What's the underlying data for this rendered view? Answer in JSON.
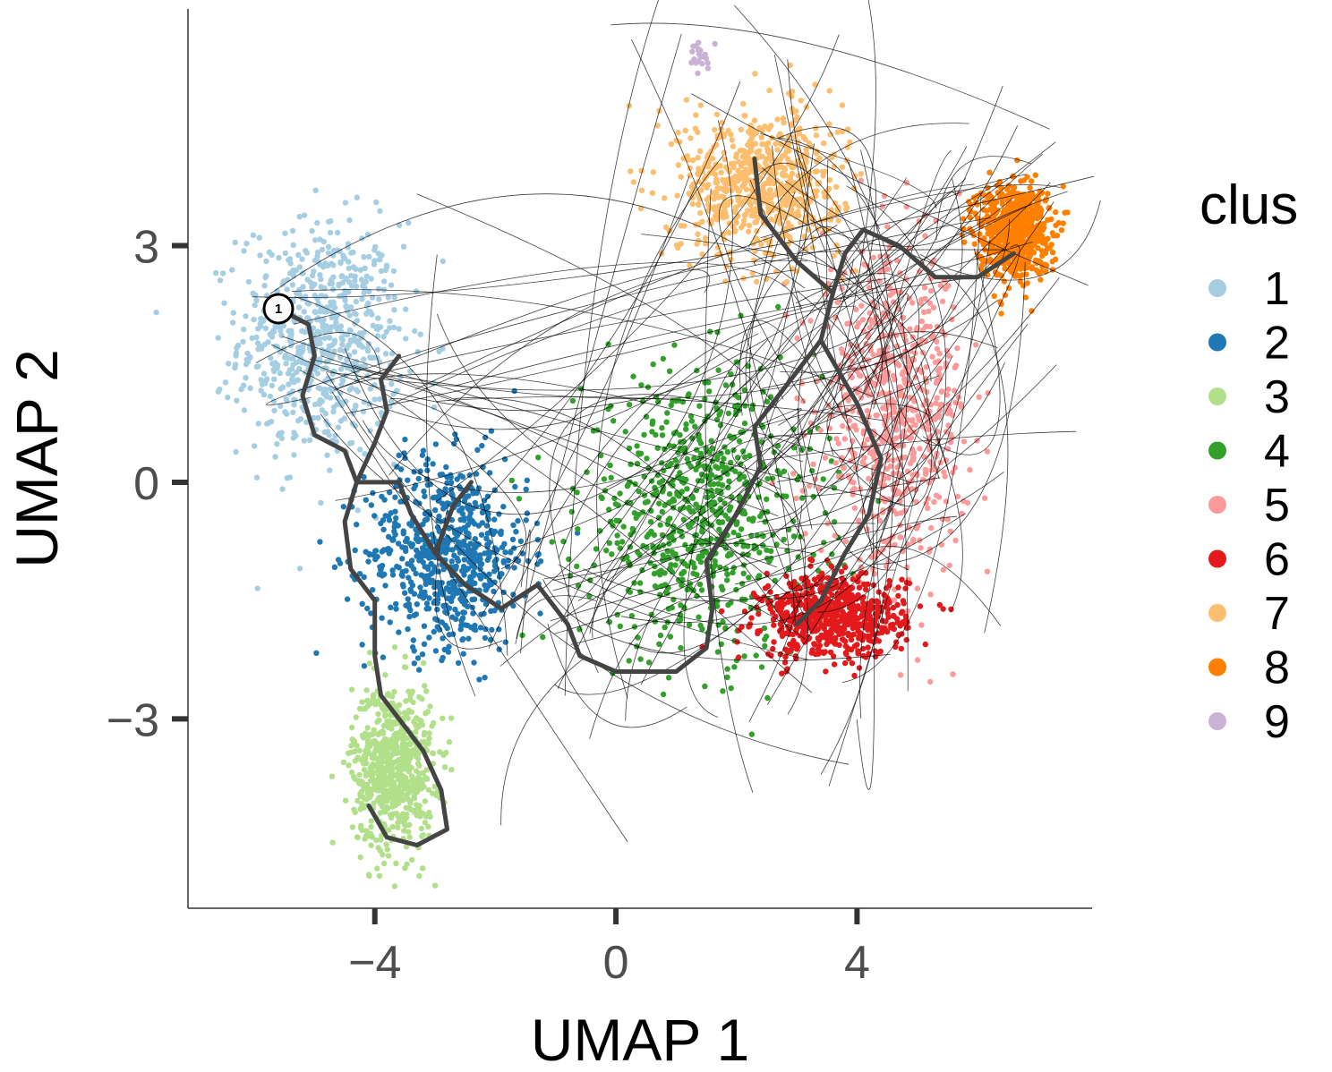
{
  "chart_data": {
    "type": "scatter",
    "xlabel": "UMAP 1",
    "ylabel": "UMAP 2",
    "xlim": [
      -7.1,
      7.9
    ],
    "ylim": [
      -5.4,
      6.0
    ],
    "xticks": [
      -4,
      0,
      4
    ],
    "xtick_labels": [
      "−4",
      "0",
      "4"
    ],
    "yticks": [
      -3,
      0,
      3
    ],
    "ytick_labels": [
      "−3",
      "0",
      "3"
    ],
    "grid": false,
    "legend": {
      "title": "clus",
      "placement": "right",
      "entries": [
        "1",
        "2",
        "3",
        "4",
        "5",
        "6",
        "7",
        "8",
        "9"
      ]
    },
    "clusters": [
      {
        "name": "1",
        "color": "#a6cee3",
        "cx": -4.9,
        "cy": 1.8,
        "sx": 0.9,
        "sy": 1.0
      },
      {
        "name": "2",
        "color": "#1f78b4",
        "cx": -2.8,
        "cy": -0.9,
        "sx": 0.9,
        "sy": 0.8
      },
      {
        "name": "3",
        "color": "#b2df8a",
        "cx": -3.7,
        "cy": -3.6,
        "sx": 0.45,
        "sy": 0.7
      },
      {
        "name": "4",
        "color": "#33a02c",
        "cx": 1.4,
        "cy": -0.4,
        "sx": 1.3,
        "sy": 1.2
      },
      {
        "name": "5",
        "color": "#fb9a99",
        "cx": 4.6,
        "cy": 0.9,
        "sx": 0.8,
        "sy": 1.3
      },
      {
        "name": "6",
        "color": "#e31a1c",
        "cx": 3.6,
        "cy": -1.7,
        "sx": 0.8,
        "sy": 0.35
      },
      {
        "name": "7",
        "color": "#fdbf6f",
        "cx": 2.4,
        "cy": 3.8,
        "sx": 0.9,
        "sy": 0.6
      },
      {
        "name": "8",
        "color": "#ff7f00",
        "cx": 6.6,
        "cy": 3.2,
        "sx": 0.4,
        "sy": 0.4
      },
      {
        "name": "9",
        "color": "#cab2d6",
        "cx": 1.4,
        "cy": 5.4,
        "sx": 0.15,
        "sy": 0.12
      }
    ],
    "trajectory": {
      "color": "#444444",
      "start_label": "1",
      "start": [
        -5.6,
        2.2
      ],
      "path": [
        [
          -5.6,
          2.2
        ],
        [
          -5.1,
          2.0
        ],
        [
          -5.0,
          1.6
        ],
        [
          -5.2,
          1.1
        ],
        [
          -5.0,
          0.6
        ],
        [
          -4.5,
          0.4
        ],
        [
          -4.3,
          0.0
        ],
        [
          -4.5,
          -0.5
        ],
        [
          -4.4,
          -1.1
        ],
        [
          -4.0,
          -1.5
        ],
        [
          -4.0,
          -2.2
        ],
        [
          -3.9,
          -2.7
        ],
        [
          -3.6,
          -3.0
        ],
        [
          -3.2,
          -3.4
        ],
        [
          -2.9,
          -3.9
        ],
        [
          -2.8,
          -4.4
        ],
        [
          -3.3,
          -4.6
        ],
        [
          -3.8,
          -4.5
        ],
        [
          -4.1,
          -4.1
        ]
      ],
      "branches": [
        [
          [
            -4.3,
            0.0
          ],
          [
            -4.0,
            0.5
          ],
          [
            -3.8,
            0.9
          ],
          [
            -3.9,
            1.3
          ],
          [
            -3.6,
            1.6
          ]
        ],
        [
          [
            -4.3,
            0.0
          ],
          [
            -3.6,
            0.0
          ],
          [
            -3.4,
            -0.4
          ],
          [
            -3.0,
            -0.9
          ],
          [
            -2.5,
            -1.3
          ],
          [
            -1.9,
            -1.6
          ],
          [
            -1.3,
            -1.3
          ],
          [
            -0.8,
            -1.8
          ],
          [
            -0.6,
            -2.2
          ],
          [
            0.0,
            -2.4
          ],
          [
            1.0,
            -2.4
          ],
          [
            1.5,
            -2.1
          ],
          [
            1.6,
            -1.6
          ],
          [
            1.5,
            -1.0
          ],
          [
            2.0,
            -0.4
          ],
          [
            2.4,
            0.2
          ],
          [
            2.3,
            0.7
          ],
          [
            2.8,
            1.2
          ],
          [
            3.4,
            1.8
          ],
          [
            3.6,
            2.4
          ],
          [
            3.8,
            2.9
          ],
          [
            4.1,
            3.2
          ],
          [
            4.7,
            3.0
          ],
          [
            5.3,
            2.6
          ],
          [
            6.0,
            2.6
          ],
          [
            6.6,
            2.9
          ]
        ],
        [
          [
            -3.0,
            -0.9
          ],
          [
            -2.7,
            -0.3
          ],
          [
            -2.4,
            0.0
          ]
        ],
        [
          [
            3.6,
            2.4
          ],
          [
            3.0,
            2.8
          ],
          [
            2.4,
            3.4
          ],
          [
            2.3,
            4.1
          ]
        ],
        [
          [
            3.4,
            1.8
          ],
          [
            4.0,
            1.0
          ],
          [
            4.4,
            0.3
          ],
          [
            4.2,
            -0.4
          ],
          [
            3.8,
            -0.9
          ],
          [
            3.4,
            -1.5
          ],
          [
            3.0,
            -1.8
          ]
        ]
      ]
    }
  }
}
